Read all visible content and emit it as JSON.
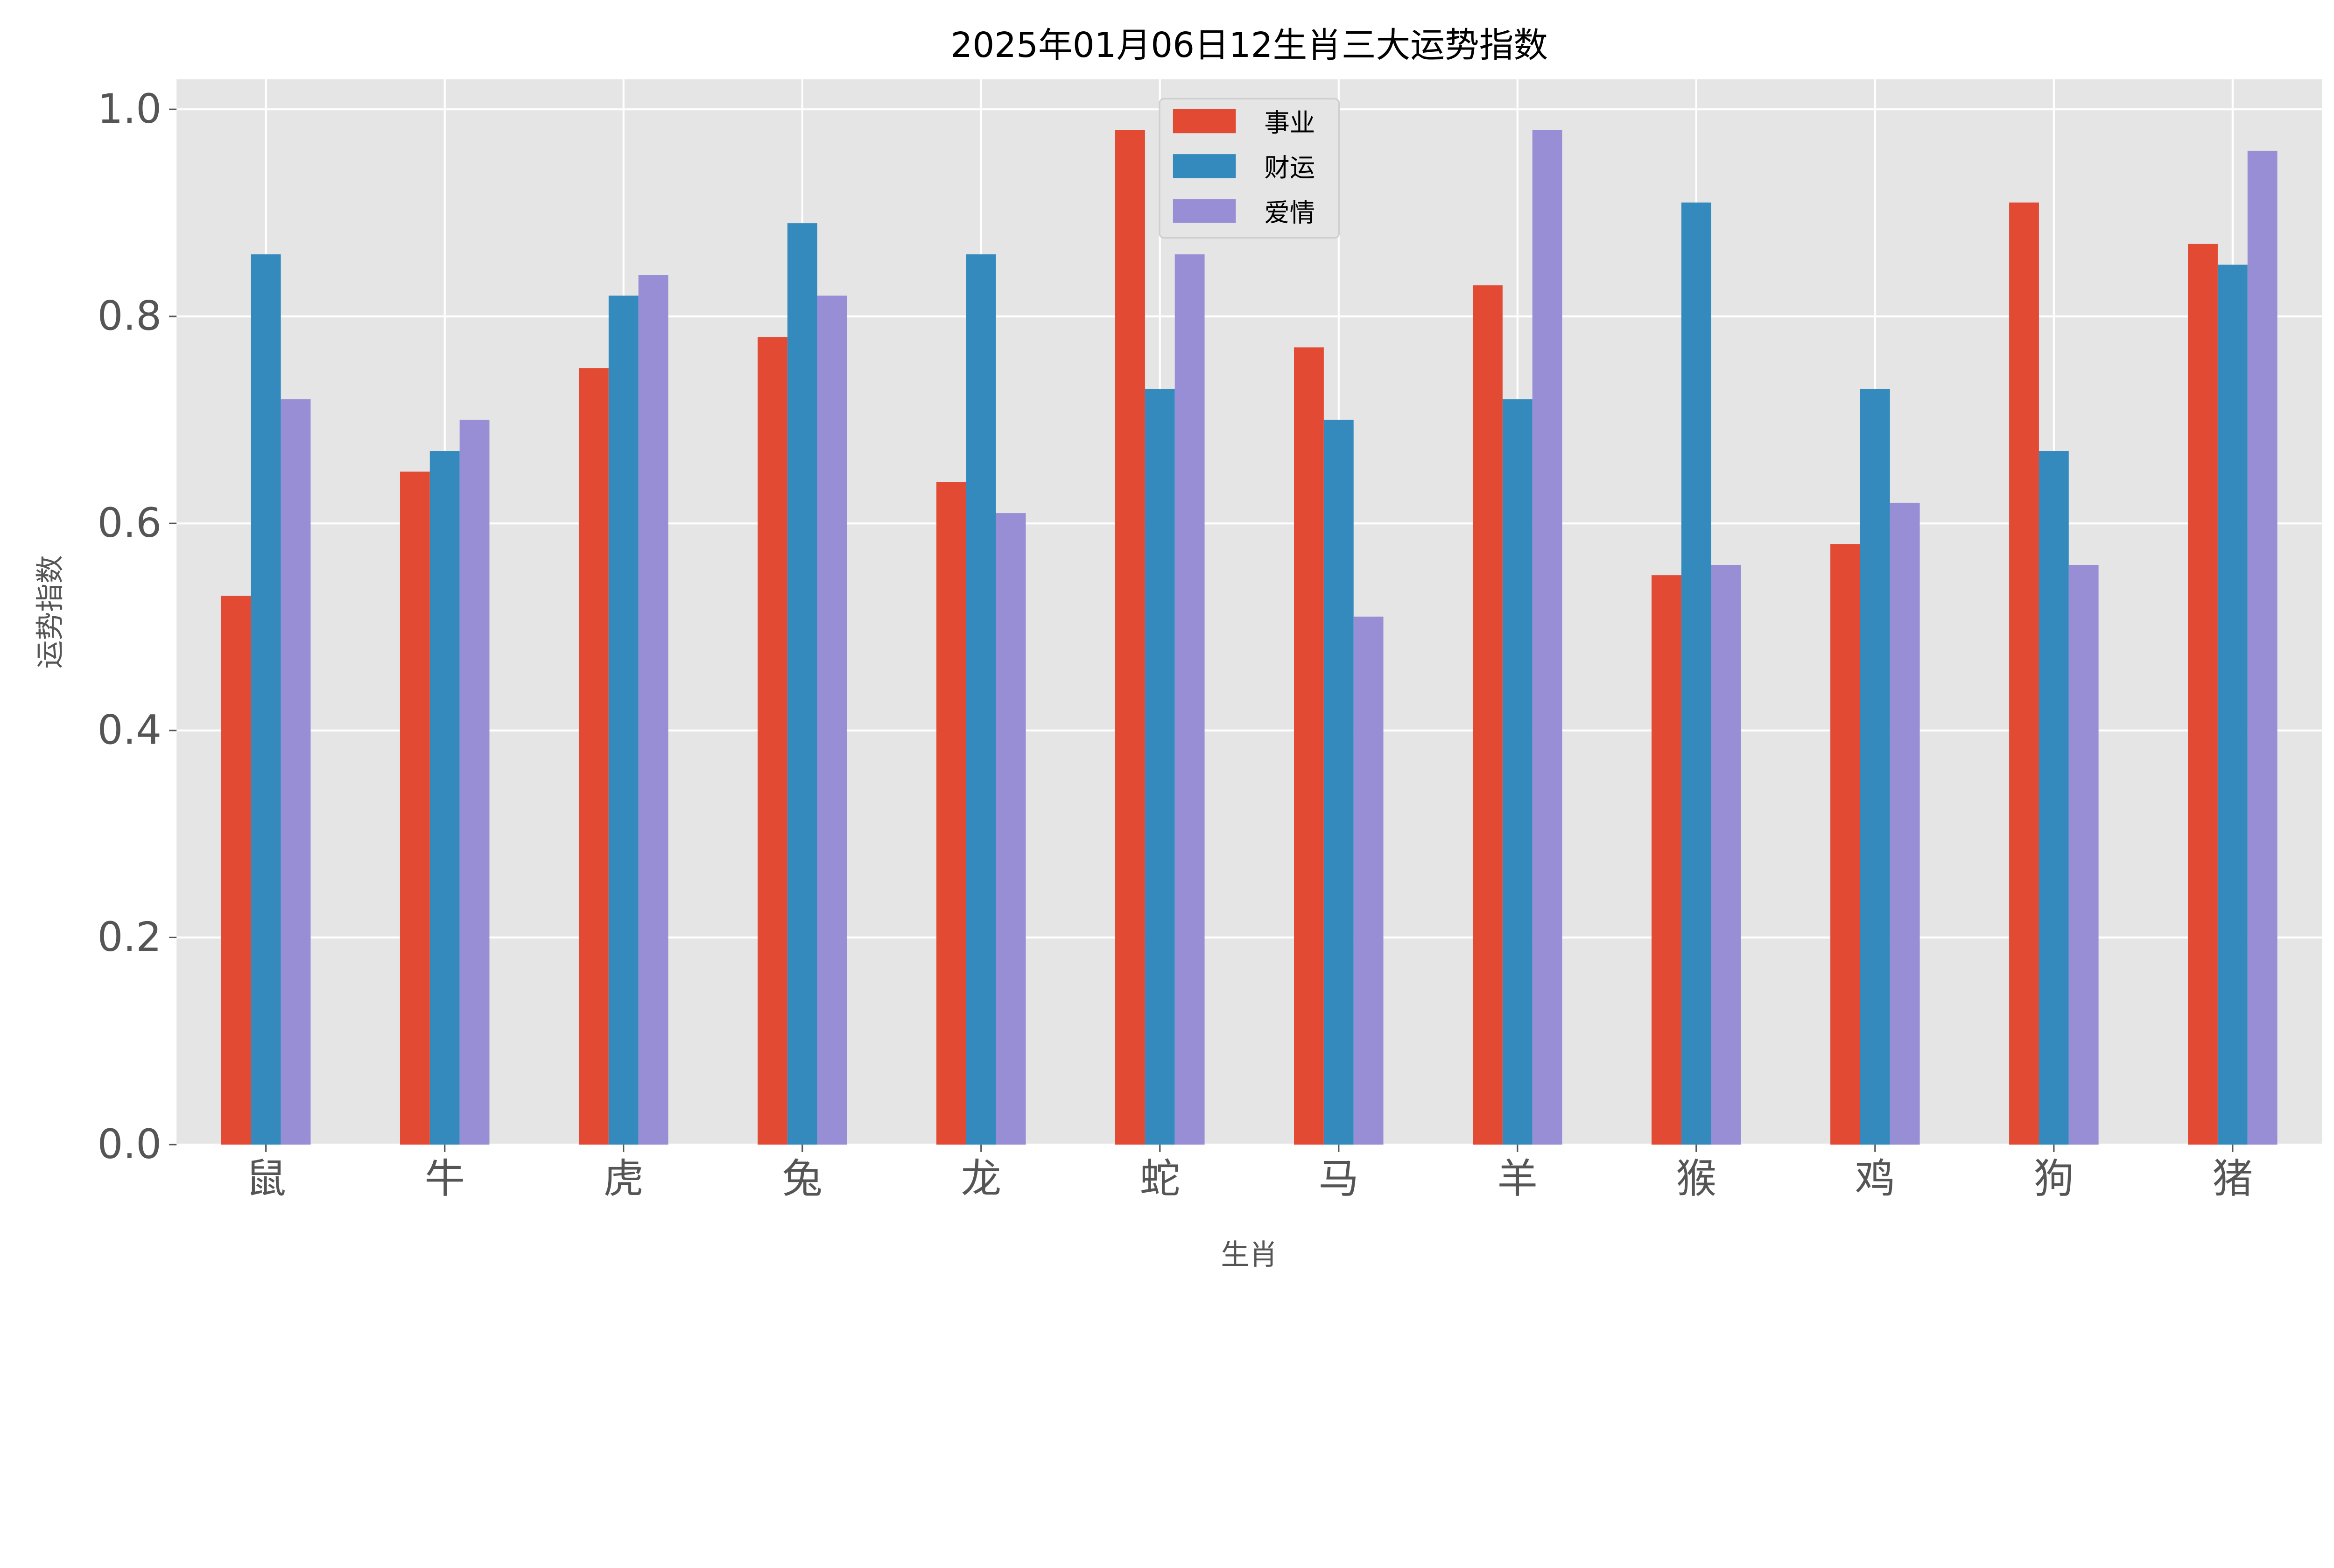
{
  "chart_data": {
    "type": "bar",
    "title": "2025年01月06日12生肖三大运势指数",
    "xlabel": "生肖",
    "ylabel": "运势指数",
    "categories": [
      "鼠",
      "牛",
      "虎",
      "兔",
      "龙",
      "蛇",
      "马",
      "羊",
      "猴",
      "鸡",
      "狗",
      "猪"
    ],
    "series": [
      {
        "name": "事业",
        "color": "#E24A33",
        "values": [
          0.53,
          0.65,
          0.75,
          0.78,
          0.64,
          0.98,
          0.77,
          0.83,
          0.55,
          0.58,
          0.91,
          0.87
        ]
      },
      {
        "name": "财运",
        "color": "#348ABD",
        "values": [
          0.86,
          0.67,
          0.82,
          0.89,
          0.86,
          0.73,
          0.7,
          0.72,
          0.91,
          0.73,
          0.67,
          0.85
        ]
      },
      {
        "name": "爱情",
        "color": "#988ED5",
        "values": [
          0.72,
          0.7,
          0.84,
          0.82,
          0.61,
          0.86,
          0.51,
          0.98,
          0.56,
          0.62,
          0.56,
          0.96
        ]
      }
    ],
    "yticks": [
      "0.0",
      "0.2",
      "0.4",
      "0.6",
      "0.8",
      "1.0"
    ],
    "ylim": [
      0,
      1.029
    ],
    "grid": true,
    "legend_position": "top-center",
    "background_color": "#E5E5E5"
  }
}
